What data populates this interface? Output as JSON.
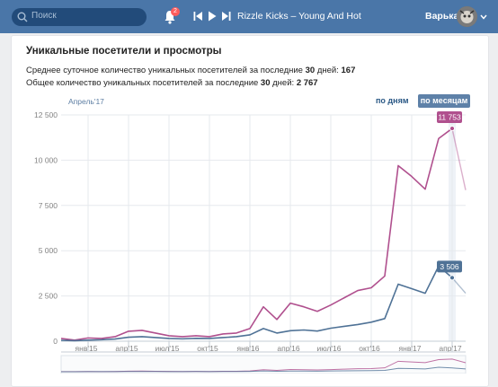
{
  "topbar": {
    "search_placeholder": "Поиск",
    "notification_count": "2",
    "track": "Rizzle Kicks – Young And Hot",
    "username": "Варька"
  },
  "card": {
    "title": "Уникальные посетители и просмотры",
    "daily_prefix": "Среднее суточное количество уникальных посетителей за последние ",
    "daily_days": "30",
    "daily_mid": " дней: ",
    "daily_value": "167",
    "total_prefix": "Общее количество уникальных посетителей за последние ",
    "total_days": "30",
    "total_mid": " дней: ",
    "total_value": "2 767",
    "period_label": "Апрель'17",
    "tab_days": "по дням",
    "tab_months": "по месяцам"
  },
  "colors": {
    "header": "#4a76a8",
    "views": "#b0508e",
    "visitors": "#4f7296"
  },
  "chart_data": {
    "type": "line",
    "ylim": [
      0,
      12500
    ],
    "y_ticks": [
      0,
      2500,
      5000,
      7500,
      10000,
      12500
    ],
    "y_tick_labels": [
      "0",
      "2 500",
      "5 000",
      "7 500",
      "10 000",
      "12 500"
    ],
    "x_ticks": [
      {
        "index": 2,
        "label": "янв'15"
      },
      {
        "index": 5,
        "label": "апр'15"
      },
      {
        "index": 8,
        "label": "июл'15"
      },
      {
        "index": 11,
        "label": "окт'15"
      },
      {
        "index": 14,
        "label": "янв'16"
      },
      {
        "index": 17,
        "label": "апр'16"
      },
      {
        "index": 20,
        "label": "июл'16"
      },
      {
        "index": 23,
        "label": "окт'16"
      },
      {
        "index": 26,
        "label": "янв'17"
      },
      {
        "index": 29,
        "label": "апр'17"
      }
    ],
    "series": [
      {
        "name": "",
        "color": "#b0508e",
        "values": [
          150,
          60,
          180,
          150,
          250,
          550,
          600,
          450,
          300,
          250,
          300,
          250,
          400,
          450,
          700,
          1900,
          1200,
          2100,
          1900,
          1650,
          2000,
          2400,
          2800,
          2950,
          3600,
          9700,
          9100,
          8400,
          11200,
          11753,
          8350
        ],
        "highlight_index": 29,
        "highlight_label": "11 753"
      },
      {
        "name": "",
        "color": "#4f7296",
        "values": [
          50,
          30,
          60,
          80,
          120,
          220,
          250,
          200,
          150,
          130,
          160,
          150,
          200,
          250,
          350,
          700,
          450,
          580,
          620,
          560,
          720,
          820,
          920,
          1050,
          1250,
          3150,
          2900,
          2650,
          4150,
          3506,
          2650
        ],
        "highlight_index": 29,
        "highlight_label": "3 506"
      }
    ]
  }
}
